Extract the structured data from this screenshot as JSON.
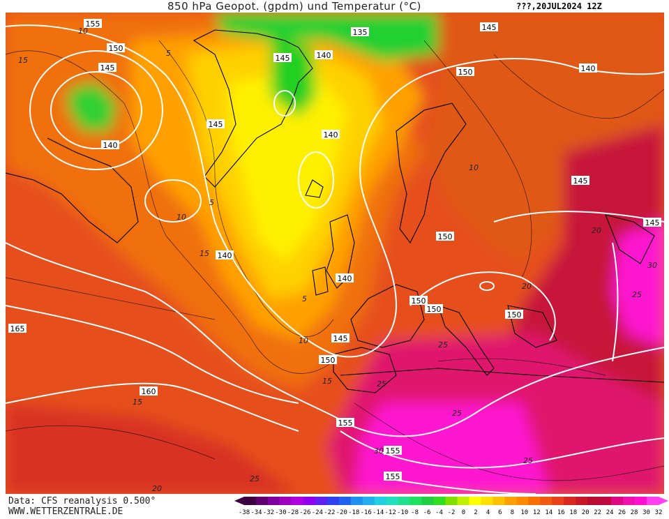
{
  "header": {
    "title": "850 hPa Geopot. (gpdm) und Temperatur (°C)",
    "datestamp": "???,20JUL2024 12Z"
  },
  "footer": {
    "data_source": "Data: CFS reanalysis 0.500°",
    "website": "WWW.WETTERZENTRALE.DE"
  },
  "colors": {
    "background_hot": "#e8481a",
    "very_hot": "#ff10d0",
    "cool": "#ffe000",
    "cold": "#20d020",
    "isohypse_line": "#ffffff",
    "isotherm_line": "#000000"
  },
  "legend": {
    "values": [
      "-38",
      "-34",
      "-32",
      "-30",
      "-28",
      "-26",
      "-24",
      "-22",
      "-20",
      "-18",
      "-16",
      "-14",
      "-12",
      "-10",
      "-8",
      "-6",
      "-4",
      "-2",
      "0",
      "2",
      "4",
      "6",
      "8",
      "10",
      "12",
      "14",
      "16",
      "18",
      "20",
      "22",
      "24",
      "26",
      "28",
      "30",
      "32"
    ],
    "colors": [
      "#3c0040",
      "#600070",
      "#8000a0",
      "#a000c0",
      "#b000e0",
      "#9000f0",
      "#6020f0",
      "#3040f0",
      "#2060f0",
      "#2090f0",
      "#20b0f0",
      "#20d0e0",
      "#20e0c0",
      "#20e090",
      "#20e060",
      "#20d040",
      "#30e020",
      "#80e000",
      "#c0f000",
      "#ffff00",
      "#ffe000",
      "#ffc000",
      "#ffa000",
      "#ff8a00",
      "#f87000",
      "#f05a10",
      "#e84018",
      "#d82820",
      "#c81828",
      "#b80c30",
      "#c00840",
      "#e00880",
      "#f010b0",
      "#ff10d0",
      "#ff40f0"
    ]
  },
  "map": {
    "geopotential_labels": [
      "155",
      "150",
      "145",
      "140",
      "135",
      "140",
      "145",
      "150",
      "145",
      "140",
      "140",
      "145",
      "145",
      "140",
      "140",
      "150",
      "150",
      "150",
      "150",
      "150",
      "145",
      "150",
      "145",
      "165",
      "160",
      "155",
      "155",
      "155",
      "145",
      "145"
    ],
    "temperature_labels": [
      "15",
      "10",
      "5",
      "5",
      "10",
      "5",
      "10",
      "10",
      "15",
      "15",
      "20",
      "25",
      "25",
      "30",
      "25",
      "30",
      "25",
      "20",
      "15",
      "20",
      "25",
      "25"
    ]
  }
}
